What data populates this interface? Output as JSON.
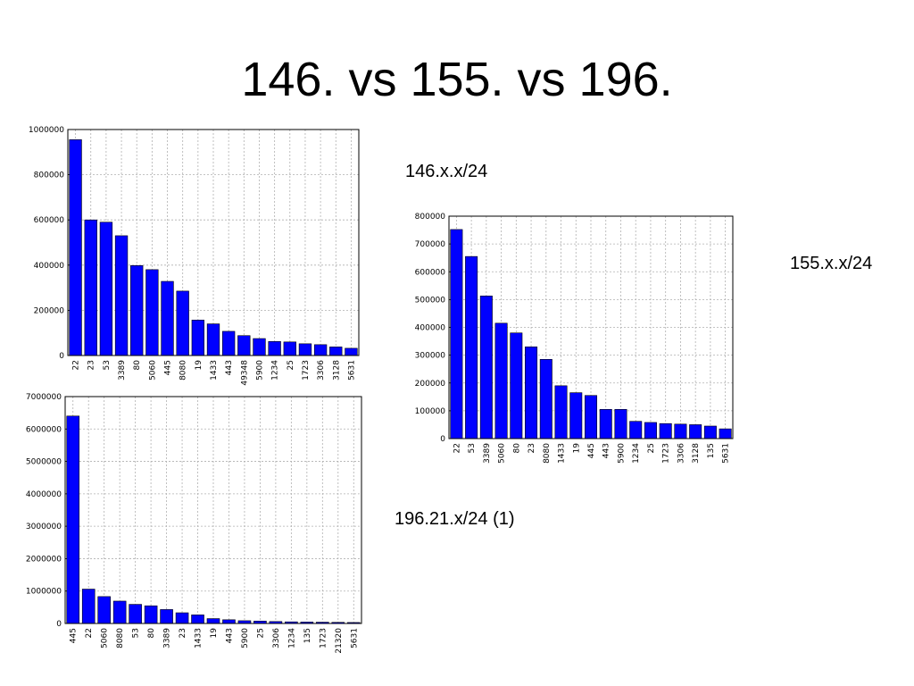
{
  "slide": {
    "title": "146. vs 155. vs 196.",
    "captions": {
      "chart_146": "146.x.x/24",
      "chart_155": "155.x.x/24",
      "chart_196": "196.21.x/24 (1)"
    }
  },
  "colors": {
    "bar": "#0000ff",
    "bar_edge": "#000000",
    "grid": "#b0b0b0"
  },
  "chart_data": [
    {
      "id": "chart-146",
      "type": "bar",
      "categories": [
        "22",
        "23",
        "53",
        "3389",
        "80",
        "5060",
        "445",
        "8080",
        "19",
        "1433",
        "443",
        "49348",
        "5900",
        "1234",
        "25",
        "1723",
        "3306",
        "3128",
        "5631"
      ],
      "values": [
        955000,
        600000,
        590000,
        530000,
        398000,
        380000,
        328000,
        285000,
        157000,
        140000,
        107000,
        88000,
        75000,
        62000,
        60000,
        52000,
        48000,
        38000,
        32000
      ],
      "ylim": [
        0,
        1000000
      ],
      "yticks": [
        0,
        200000,
        400000,
        600000,
        800000,
        1000000
      ],
      "grid": true
    },
    {
      "id": "chart-155",
      "type": "bar",
      "categories": [
        "22",
        "53",
        "3389",
        "5060",
        "80",
        "23",
        "8080",
        "1433",
        "19",
        "445",
        "443",
        "5900",
        "1234",
        "25",
        "1723",
        "3306",
        "3128",
        "135",
        "5631"
      ],
      "values": [
        752000,
        655000,
        513000,
        415000,
        380000,
        330000,
        285000,
        190000,
        165000,
        155000,
        105000,
        105000,
        62000,
        58000,
        54000,
        52000,
        50000,
        45000,
        35000
      ],
      "ylim": [
        0,
        800000
      ],
      "yticks": [
        0,
        100000,
        200000,
        300000,
        400000,
        500000,
        600000,
        700000,
        800000
      ],
      "grid": true
    },
    {
      "id": "chart-196",
      "type": "bar",
      "categories": [
        "445",
        "22",
        "5060",
        "8080",
        "53",
        "80",
        "3389",
        "23",
        "1433",
        "19",
        "443",
        "5900",
        "25",
        "3306",
        "1234",
        "135",
        "1723",
        "21320",
        "5631"
      ],
      "values": [
        6400000,
        1060000,
        830000,
        690000,
        590000,
        545000,
        430000,
        330000,
        265000,
        150000,
        115000,
        85000,
        75000,
        60000,
        50000,
        45000,
        40000,
        35000,
        30000
      ],
      "ylim": [
        0,
        7000000
      ],
      "yticks": [
        0,
        1000000,
        2000000,
        3000000,
        4000000,
        5000000,
        6000000,
        7000000
      ],
      "grid": true
    }
  ]
}
